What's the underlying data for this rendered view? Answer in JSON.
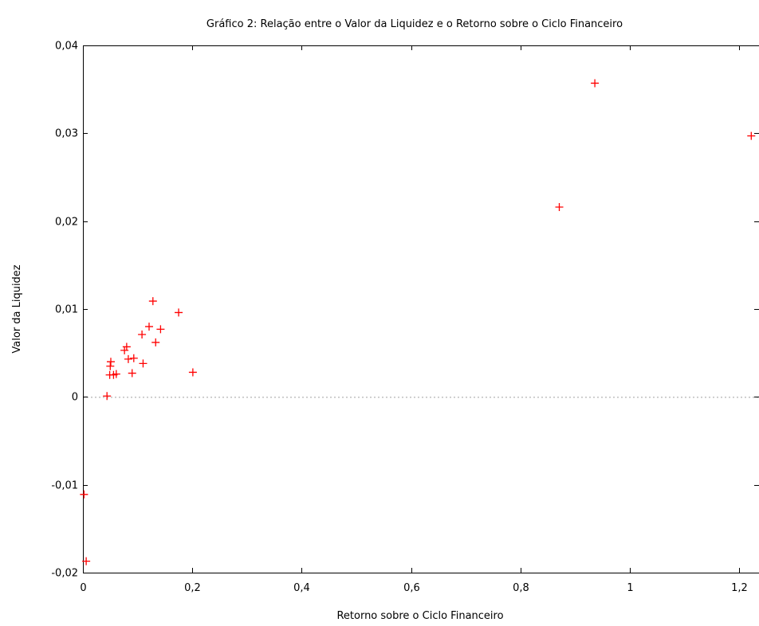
{
  "chart_data": {
    "type": "scatter",
    "title": "Gráfico 2: Relação entre o Valor da Liquidez e o Retorno sobre o Ciclo Financeiro",
    "xlabel": "Retorno sobre o Ciclo Financeiro",
    "ylabel": "Valor da Liquidez",
    "xlim": [
      0,
      1.23
    ],
    "ylim": [
      -0.02,
      0.04
    ],
    "x_ticks": [
      0,
      0.2,
      0.4,
      0.6,
      0.8,
      1,
      1.2
    ],
    "x_tick_labels": [
      "0",
      "0,2",
      "0,4",
      "0,6",
      "0,8",
      "1",
      "1,2"
    ],
    "y_ticks": [
      -0.02,
      -0.01,
      0,
      0.01,
      0.02,
      0.03,
      0.04
    ],
    "y_tick_labels": [
      "-0,02",
      "-0,01",
      "0",
      "0,01",
      "0,02",
      "0,03",
      "0,04"
    ],
    "zero_line": true,
    "grid": false,
    "marker": "plus",
    "color": "#ff0000",
    "points": [
      {
        "x": 0.002,
        "y": -0.0111
      },
      {
        "x": 0.006,
        "y": -0.0187
      },
      {
        "x": 0.044,
        "y": 0.0001
      },
      {
        "x": 0.049,
        "y": 0.0025
      },
      {
        "x": 0.05,
        "y": 0.0035
      },
      {
        "x": 0.051,
        "y": 0.004
      },
      {
        "x": 0.056,
        "y": 0.0025
      },
      {
        "x": 0.061,
        "y": 0.0026
      },
      {
        "x": 0.076,
        "y": 0.0053
      },
      {
        "x": 0.08,
        "y": 0.0057
      },
      {
        "x": 0.083,
        "y": 0.0043
      },
      {
        "x": 0.09,
        "y": 0.0027
      },
      {
        "x": 0.093,
        "y": 0.0044
      },
      {
        "x": 0.108,
        "y": 0.0071
      },
      {
        "x": 0.11,
        "y": 0.0038
      },
      {
        "x": 0.121,
        "y": 0.008
      },
      {
        "x": 0.128,
        "y": 0.0109
      },
      {
        "x": 0.133,
        "y": 0.0062
      },
      {
        "x": 0.142,
        "y": 0.0077
      },
      {
        "x": 0.175,
        "y": 0.0096
      },
      {
        "x": 0.201,
        "y": 0.0028
      },
      {
        "x": 0.871,
        "y": 0.0216
      },
      {
        "x": 0.936,
        "y": 0.0357
      },
      {
        "x": 1.222,
        "y": 0.0297
      }
    ]
  }
}
